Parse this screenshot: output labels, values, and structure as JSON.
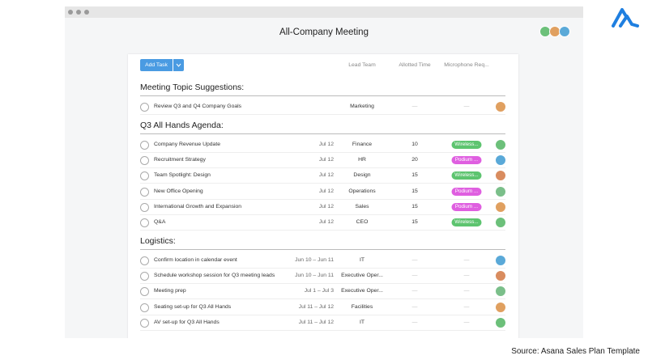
{
  "window": {
    "title": "All-Company Meeting"
  },
  "toolbar": {
    "add_task": "Add Task",
    "columns": [
      "Lead Team",
      "Allotted Time",
      "Microphone Req..."
    ]
  },
  "sections": [
    {
      "title": "Meeting Topic Suggestions:",
      "rows": [
        {
          "task": "Review Q3 and Q4 Company Goals",
          "team": "Marketing",
          "time": "—",
          "mic": "—"
        }
      ]
    },
    {
      "title": "Q3 All Hands Agenda:",
      "rows": [
        {
          "task": "Company Revenue Update",
          "date": "Jul 12",
          "team": "Finance",
          "time": "10",
          "mic": "Wireless...",
          "mic_color": "#5dc46f"
        },
        {
          "task": "Recruitment Strategy",
          "date": "Jul 12",
          "team": "HR",
          "time": "20",
          "mic": "Podium ...",
          "mic_color": "#df5fe0"
        },
        {
          "task": "Team Spotlight: Design",
          "date": "Jul 12",
          "team": "Design",
          "time": "15",
          "mic": "Wireless...",
          "mic_color": "#5dc46f"
        },
        {
          "task": "New Office Opening",
          "date": "Jul 12",
          "team": "Operations",
          "time": "15",
          "mic": "Podium ...",
          "mic_color": "#df5fe0"
        },
        {
          "task": "International Growth and Expansion",
          "date": "Jul 12",
          "team": "Sales",
          "time": "15",
          "mic": "Podium ...",
          "mic_color": "#df5fe0"
        },
        {
          "task": "Q&A",
          "date": "Jul 12",
          "team": "CEO",
          "time": "15",
          "mic": "Wireless...",
          "mic_color": "#5dc46f"
        }
      ]
    },
    {
      "title": "Logistics:",
      "rows": [
        {
          "task": "Confirm location in calendar event",
          "date": "Jun 10 – Jun 11",
          "team": "IT",
          "time": "—",
          "mic": "—"
        },
        {
          "task": "Schedule workshop session for Q3 meeting leads",
          "date": "Jun 10 – Jun 11",
          "team": "Executive Oper...",
          "time": "—",
          "mic": "—"
        },
        {
          "task": "Meeting prep",
          "date": "Jul 1 – Jul 3",
          "team": "Executive Oper...",
          "time": "—",
          "mic": "—"
        },
        {
          "task": "Seating set-up for Q3 All Hands",
          "date": "Jul 11 – Jul 12",
          "team": "Facilities",
          "time": "—",
          "mic": "—"
        },
        {
          "task": "AV set-up for Q3 All Hands",
          "date": "Jul 11 – Jul 12",
          "team": "IT",
          "time": "—",
          "mic": "—"
        }
      ]
    }
  ],
  "source": "Source: Asana Sales Plan Template"
}
